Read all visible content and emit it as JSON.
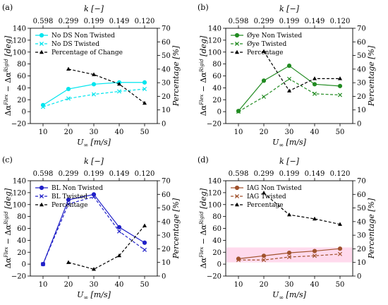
{
  "chart_data": [
    {
      "type": "line",
      "panel_label": "(a)",
      "x": [
        10,
        20,
        30,
        40,
        50
      ],
      "top_axis": {
        "label": "k [−]",
        "ticks": [
          "0.598",
          "0.299",
          "0.199",
          "0.149",
          "0.120"
        ]
      },
      "xlabel": "U∞ [m/s]",
      "ylabel": "Δα^Flex − Δα^Rigid [deg]",
      "y2label": "Percentage [%]",
      "ylim": [
        -20,
        140
      ],
      "y2lim": [
        0,
        70
      ],
      "legend_position": "top-left",
      "series": [
        {
          "name": "No DS Non Twisted",
          "axis": "left",
          "color": "#00e5ee",
          "style": "solid",
          "marker": "circle",
          "x": [
            10,
            20,
            30,
            40,
            50
          ],
          "values": [
            11,
            38,
            46,
            49,
            49
          ]
        },
        {
          "name": "No DS Twisted",
          "axis": "left",
          "color": "#00e5ee",
          "style": "dashed",
          "marker": "x",
          "x": [
            10,
            20,
            30,
            40,
            50
          ],
          "values": [
            8,
            22,
            29,
            34,
            38
          ]
        },
        {
          "name": "Percentage of Change",
          "axis": "right",
          "color": "#000000",
          "style": "dashed",
          "marker": "triangle",
          "x": [
            20,
            30,
            40,
            50
          ],
          "values": [
            40,
            36,
            29,
            15
          ]
        }
      ]
    },
    {
      "type": "line",
      "panel_label": "(b)",
      "x": [
        10,
        20,
        30,
        40,
        50
      ],
      "top_axis": {
        "label": "k [−]",
        "ticks": [
          "0.598",
          "0.299",
          "0.199",
          "0.149",
          "0.120"
        ]
      },
      "xlabel": "U∞ [m/s]",
      "ylabel": "Δα^Flex − Δα^Rigid [deg]",
      "y2label": "Percentage [%]",
      "ylim": [
        -20,
        140
      ],
      "y2lim": [
        0,
        70
      ],
      "legend_position": "top-left",
      "series": [
        {
          "name": "Øye Non Twisted",
          "axis": "left",
          "color": "#228b22",
          "style": "solid",
          "marker": "circle",
          "x": [
            10,
            20,
            30,
            40,
            50
          ],
          "values": [
            1,
            52,
            77,
            46,
            43
          ]
        },
        {
          "name": "Øye Twisted",
          "axis": "left",
          "color": "#228b22",
          "style": "dashed",
          "marker": "x",
          "x": [
            10,
            20,
            30,
            40,
            50
          ],
          "values": [
            0,
            25,
            55,
            30,
            28
          ]
        },
        {
          "name": "Percentage",
          "axis": "right",
          "color": "#000000",
          "style": "dashed",
          "marker": "triangle",
          "x": [
            20,
            30,
            40,
            50
          ],
          "values": [
            53,
            24,
            33,
            33
          ]
        }
      ]
    },
    {
      "type": "line",
      "panel_label": "(c)",
      "x": [
        10,
        20,
        30,
        40,
        50
      ],
      "top_axis": {
        "label": "k [−]",
        "ticks": [
          "0.598",
          "0.299",
          "0.199",
          "0.149",
          "0.120"
        ]
      },
      "xlabel": "U∞ [m/s]",
      "ylabel": "Δα^Flex − Δα^Rigid [deg]",
      "y2label": "Percentage [%]",
      "ylim": [
        -20,
        140
      ],
      "y2lim": [
        0,
        70
      ],
      "legend_position": "top-left",
      "series": [
        {
          "name": "BL Non Twisted",
          "axis": "left",
          "color": "#2020c8",
          "style": "solid",
          "marker": "circle",
          "x": [
            10,
            20,
            30,
            40,
            50
          ],
          "values": [
            0,
            108,
            117,
            62,
            36
          ]
        },
        {
          "name": "BL Twisted",
          "axis": "left",
          "color": "#2020c8",
          "style": "dashed",
          "marker": "x",
          "x": [
            10,
            20,
            30,
            40,
            50
          ],
          "values": [
            0,
            101,
            113,
            55,
            24
          ]
        },
        {
          "name": "Percentage",
          "axis": "right",
          "color": "#000000",
          "style": "dashed",
          "marker": "triangle",
          "x": [
            20,
            30,
            40,
            50
          ],
          "values": [
            10,
            5,
            15,
            37
          ]
        }
      ]
    },
    {
      "type": "line",
      "panel_label": "(d)",
      "x": [
        10,
        20,
        30,
        40,
        50
      ],
      "top_axis": {
        "label": "k [−]",
        "ticks": [
          "0.598",
          "0.299",
          "0.199",
          "0.149",
          "0.120"
        ]
      },
      "xlabel": "U∞ [m/s]",
      "ylabel": "Δα^Flex − Δα^Rigid [deg]",
      "y2label": "Percentage [%]",
      "ylim": [
        -20,
        140
      ],
      "y2lim": [
        0,
        70
      ],
      "legend_position": "top-left",
      "highlight_band": {
        "color": "#ffd3ea",
        "y_range": [
          3,
          28
        ]
      },
      "series": [
        {
          "name": "IAG Non Twisted",
          "axis": "left",
          "color": "#a0522d",
          "style": "solid",
          "marker": "circle",
          "x": [
            10,
            20,
            30,
            40,
            50
          ],
          "values": [
            9,
            14,
            19,
            22,
            26
          ]
        },
        {
          "name": "IAG Twisted",
          "axis": "left",
          "color": "#a0522d",
          "style": "dashed",
          "marker": "x",
          "x": [
            10,
            20,
            30,
            40,
            50
          ],
          "values": [
            7,
            7,
            12,
            14,
            17
          ]
        },
        {
          "name": "Percentage",
          "axis": "right",
          "color": "#000000",
          "style": "dashed",
          "marker": "triangle",
          "x": [
            20,
            30,
            40,
            50
          ],
          "values": [
            61,
            45,
            42,
            38
          ]
        }
      ]
    }
  ]
}
